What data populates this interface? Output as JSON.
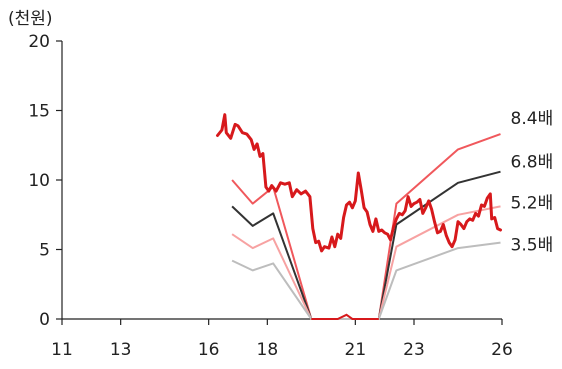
{
  "chart_data": {
    "type": "line",
    "title": "",
    "xlabel": "",
    "ylabel": "(천원)",
    "xlim": [
      11,
      26
    ],
    "ylim": [
      0,
      20
    ],
    "x_ticks": [
      "11",
      "13",
      "16",
      "18",
      "21",
      "23",
      "26"
    ],
    "y_ticks": [
      "0",
      "5",
      "10",
      "15",
      "20"
    ],
    "grid": false,
    "series": [
      {
        "name": "",
        "role": "price",
        "color": "#d7191c",
        "points": [
          [
            16.3,
            13.2
          ],
          [
            16.45,
            13.6
          ],
          [
            16.55,
            14.7
          ],
          [
            16.6,
            13.4
          ],
          [
            16.75,
            13.0
          ],
          [
            16.9,
            14.0
          ],
          [
            17.0,
            13.9
          ],
          [
            17.15,
            13.4
          ],
          [
            17.3,
            13.3
          ],
          [
            17.45,
            12.9
          ],
          [
            17.55,
            12.2
          ],
          [
            17.65,
            12.6
          ],
          [
            17.75,
            11.7
          ],
          [
            17.85,
            11.9
          ],
          [
            17.95,
            9.5
          ],
          [
            18.05,
            9.2
          ],
          [
            18.15,
            9.6
          ],
          [
            18.3,
            9.2
          ],
          [
            18.45,
            9.8
          ],
          [
            18.6,
            9.7
          ],
          [
            18.75,
            9.8
          ],
          [
            18.85,
            8.8
          ],
          [
            19.0,
            9.3
          ],
          [
            19.15,
            9.0
          ],
          [
            19.3,
            9.2
          ],
          [
            19.45,
            8.8
          ],
          [
            19.55,
            6.5
          ],
          [
            19.65,
            5.5
          ],
          [
            19.75,
            5.6
          ],
          [
            19.85,
            4.9
          ],
          [
            19.95,
            5.2
          ],
          [
            20.1,
            5.1
          ],
          [
            20.2,
            5.9
          ],
          [
            20.3,
            5.2
          ],
          [
            20.4,
            6.1
          ],
          [
            20.5,
            5.8
          ],
          [
            20.6,
            7.3
          ],
          [
            20.7,
            8.2
          ],
          [
            20.8,
            8.4
          ],
          [
            20.9,
            8.0
          ],
          [
            21.0,
            8.5
          ],
          [
            21.1,
            10.5
          ],
          [
            21.2,
            9.3
          ],
          [
            21.3,
            8.0
          ],
          [
            21.4,
            7.7
          ],
          [
            21.5,
            6.8
          ],
          [
            21.6,
            6.3
          ],
          [
            21.7,
            7.2
          ],
          [
            21.8,
            6.3
          ],
          [
            21.9,
            6.4
          ],
          [
            22.0,
            6.2
          ],
          [
            22.1,
            6.1
          ],
          [
            22.2,
            5.7
          ],
          [
            22.3,
            6.6
          ],
          [
            22.4,
            7.2
          ],
          [
            22.5,
            7.6
          ],
          [
            22.6,
            7.5
          ],
          [
            22.7,
            7.8
          ],
          [
            22.8,
            8.8
          ],
          [
            22.9,
            8.1
          ],
          [
            23.0,
            8.3
          ],
          [
            23.1,
            8.4
          ],
          [
            23.2,
            8.6
          ],
          [
            23.3,
            7.6
          ],
          [
            23.4,
            8.0
          ],
          [
            23.5,
            8.5
          ],
          [
            23.6,
            7.9
          ],
          [
            23.7,
            7.0
          ],
          [
            23.8,
            6.2
          ],
          [
            23.9,
            6.3
          ],
          [
            24.0,
            6.8
          ],
          [
            24.1,
            6.0
          ],
          [
            24.2,
            5.5
          ],
          [
            24.3,
            5.2
          ],
          [
            24.4,
            5.7
          ],
          [
            24.5,
            7.0
          ],
          [
            24.6,
            6.8
          ],
          [
            24.7,
            6.5
          ],
          [
            24.8,
            7.0
          ],
          [
            24.9,
            7.2
          ],
          [
            25.0,
            7.1
          ],
          [
            25.1,
            7.6
          ],
          [
            25.2,
            7.4
          ],
          [
            25.3,
            8.2
          ],
          [
            25.4,
            8.1
          ],
          [
            25.5,
            8.7
          ],
          [
            25.6,
            9.0
          ],
          [
            25.65,
            7.2
          ],
          [
            25.75,
            7.3
          ],
          [
            25.85,
            6.5
          ],
          [
            25.95,
            6.4
          ]
        ]
      },
      {
        "name": "8.4배",
        "color": "#f0585c",
        "points": [
          [
            16.8,
            10.0
          ],
          [
            17.5,
            8.3
          ],
          [
            18.2,
            9.5
          ],
          [
            19.5,
            0.0
          ],
          [
            21.8,
            0.0
          ],
          [
            22.4,
            8.3
          ],
          [
            24.5,
            12.2
          ],
          [
            25.95,
            13.3
          ]
        ]
      },
      {
        "name": "6.8배",
        "color": "#333333",
        "points": [
          [
            16.8,
            8.1
          ],
          [
            17.5,
            6.7
          ],
          [
            18.2,
            7.6
          ],
          [
            19.5,
            0.0
          ],
          [
            21.8,
            0.0
          ],
          [
            22.4,
            6.8
          ],
          [
            24.5,
            9.8
          ],
          [
            25.95,
            10.6
          ]
        ]
      },
      {
        "name": "5.2배",
        "color": "#f7a2a2",
        "points": [
          [
            16.8,
            6.1
          ],
          [
            17.5,
            5.1
          ],
          [
            18.2,
            5.8
          ],
          [
            19.5,
            0.0
          ],
          [
            21.8,
            0.0
          ],
          [
            22.4,
            5.2
          ],
          [
            24.5,
            7.5
          ],
          [
            25.95,
            8.1
          ]
        ]
      },
      {
        "name": "3.5배",
        "color": "#bdbdbd",
        "points": [
          [
            16.8,
            4.2
          ],
          [
            17.5,
            3.5
          ],
          [
            18.2,
            4.0
          ],
          [
            19.5,
            0.0
          ],
          [
            21.8,
            0.0
          ],
          [
            22.4,
            3.5
          ],
          [
            24.5,
            5.1
          ],
          [
            25.95,
            5.5
          ]
        ]
      }
    ],
    "bottom_segment": {
      "color": "#d7191c",
      "points": [
        [
          19.5,
          0.0
        ],
        [
          20.4,
          0.0
        ],
        [
          20.7,
          0.3
        ],
        [
          20.9,
          0.0
        ],
        [
          21.8,
          0.0
        ]
      ]
    }
  }
}
